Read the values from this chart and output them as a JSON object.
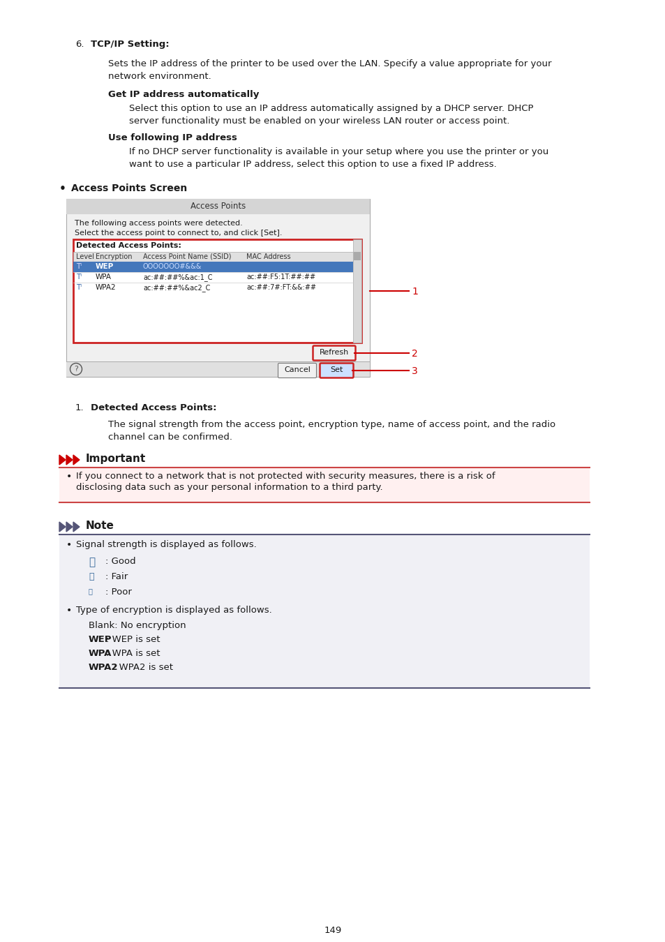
{
  "bg_color": "#ffffff",
  "text_color": "#1a1a1a",
  "page_number": "149",
  "section6_label": "6.",
  "section6_title": "TCP/IP Setting:",
  "section6_body1": "Sets the IP address of the printer to be used over the LAN. Specify a value appropriate for your",
  "section6_body2": "network environment.",
  "subsec1_title": "Get IP address automatically",
  "subsec1_body1": "Select this option to use an IP address automatically assigned by a DHCP server. DHCP",
  "subsec1_body2": "server functionality must be enabled on your wireless LAN router or access point.",
  "subsec2_title": "Use following IP address",
  "subsec2_body1": "If no DHCP server functionality is available in your setup where you use the printer or you",
  "subsec2_body2": "want to use a particular IP address, select this option to use a fixed IP address.",
  "bullet_title": "Access Points Screen",
  "item1_label": "1.",
  "item1_title": "Detected Access Points:",
  "item1_body1": "The signal strength from the access point, encryption type, name of access point, and the radio",
  "item1_body2": "channel can be confirmed.",
  "important_title": "Important",
  "important_body1": "If you connect to a network that is not protected with security measures, there is a risk of",
  "important_body2": "disclosing data such as your personal information to a third party.",
  "note_title": "Note",
  "note_bullet1": "Signal strength is displayed as follows.",
  "note_good": ": Good",
  "note_fair": ": Fair",
  "note_poor": ": Poor",
  "note_bullet2": "Type of encryption is displayed as follows.",
  "note_blank": "Blank: No encryption",
  "note_wep": "WEP",
  "note_wep_rest": ": WEP is set",
  "note_wpa": "WPA",
  "note_wpa_rest": ": WPA is set",
  "note_wpa2": "WPA2",
  "note_wpa2_rest": ": WPA2 is set",
  "dialog_title": "Access Points",
  "dialog_intro1": "The following access points were detected.",
  "dialog_intro2": "Select the access point to connect to, and click [Set].",
  "det_label": "Detected Access Points:",
  "col_level": "Level",
  "col_enc": "Encryption",
  "col_ssid": "Access Point Name (SSID)",
  "col_mac": "MAC Address",
  "row1_enc": "WEP",
  "row1_ssid": "OOOOOOO#&&&",
  "row2_enc": "WPA",
  "row2_ssid": "ac:##:##%&ac:1_C",
  "row2_mac": "ac:##:F5:1T:##:##",
  "row3_enc": "WPA2",
  "row3_ssid": "ac:##:##%&ac2_C",
  "row3_mac": "ac:##:7#:FT:&&:##",
  "btn_refresh": "Refresh",
  "btn_cancel": "Cancel",
  "btn_set": "Set",
  "callout1": "1",
  "callout2": "2",
  "callout3": "3",
  "red_color": "#cc0000",
  "dark_red": "#cc2222",
  "important_border": "#cc4444",
  "note_border_color": "#555577",
  "dialog_bg": "#f0f0f0",
  "dialog_title_bg": "#d5d5d5",
  "det_box_border": "#cc2222",
  "sel_row_bg": "#4477bb",
  "table_header_bg": "#e0e0e0",
  "note_bg": "#f0f0f5",
  "imp_bg": "#fff0f0",
  "btn_set_bg": "#cce0ff",
  "btn_bg": "#f0f0f0"
}
